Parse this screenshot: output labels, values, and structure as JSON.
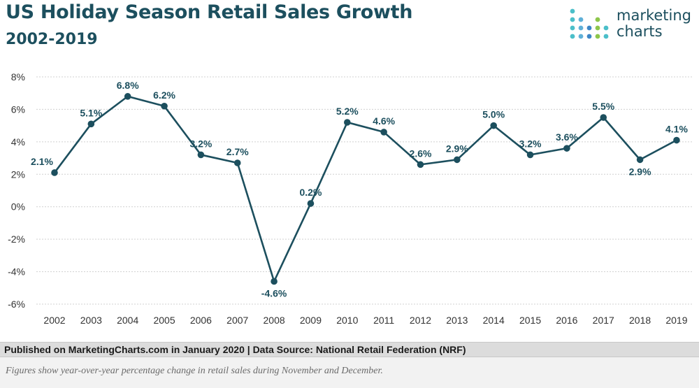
{
  "header": {
    "title": "US Holiday Season Retail Sales Growth",
    "subtitle": "2002-2019"
  },
  "logo": {
    "line1": "marketing",
    "line2": "charts",
    "icon": "dot-grid-logo"
  },
  "colors": {
    "brand": "#1c4f5e",
    "line": "#1c4f5e",
    "grid": "#d0d0d0",
    "footer_bg": "#dcdcdc",
    "note_bg": "#f2f2f2"
  },
  "footer": {
    "source": "Published on MarketingCharts.com in January 2020 | Data Source: National Retail Federation (NRF)"
  },
  "note": {
    "text": "Figures show year-over-year percentage change in retail sales during November and December."
  },
  "chart_data": {
    "type": "line",
    "title": "US Holiday Season Retail Sales Growth",
    "subtitle": "2002-2019",
    "xlabel": "",
    "ylabel": "",
    "ylim": [
      -6,
      8
    ],
    "yticks": [
      8,
      6,
      4,
      2,
      0,
      -2,
      -4,
      -6
    ],
    "ytick_labels": [
      "8%",
      "6%",
      "4%",
      "2%",
      "0%",
      "-2%",
      "-4%",
      "-6%"
    ],
    "grid": true,
    "legend": "none",
    "categories": [
      "2002",
      "2003",
      "2004",
      "2005",
      "2006",
      "2007",
      "2008",
      "2009",
      "2010",
      "2011",
      "2012",
      "2013",
      "2014",
      "2015",
      "2016",
      "2017",
      "2018",
      "2019"
    ],
    "series": [
      {
        "values": [
          2.1,
          5.1,
          6.8,
          6.2,
          3.2,
          2.7,
          -4.6,
          0.2,
          5.2,
          4.6,
          2.6,
          2.9,
          5.0,
          3.2,
          3.6,
          5.5,
          2.9,
          4.1
        ],
        "labels": [
          "2.1%",
          "5.1%",
          "6.8%",
          "6.2%",
          "3.2%",
          "2.7%",
          "-4.6%",
          "0.2%",
          "5.2%",
          "4.6%",
          "2.6%",
          "2.9%",
          "5.0%",
          "3.2%",
          "3.6%",
          "5.5%",
          "2.9%",
          "4.1%"
        ],
        "label_position": [
          "above",
          "above",
          "above",
          "above",
          "above",
          "above",
          "below",
          "above",
          "above",
          "above",
          "above",
          "above",
          "above",
          "above",
          "above",
          "above",
          "below",
          "above"
        ]
      }
    ]
  }
}
